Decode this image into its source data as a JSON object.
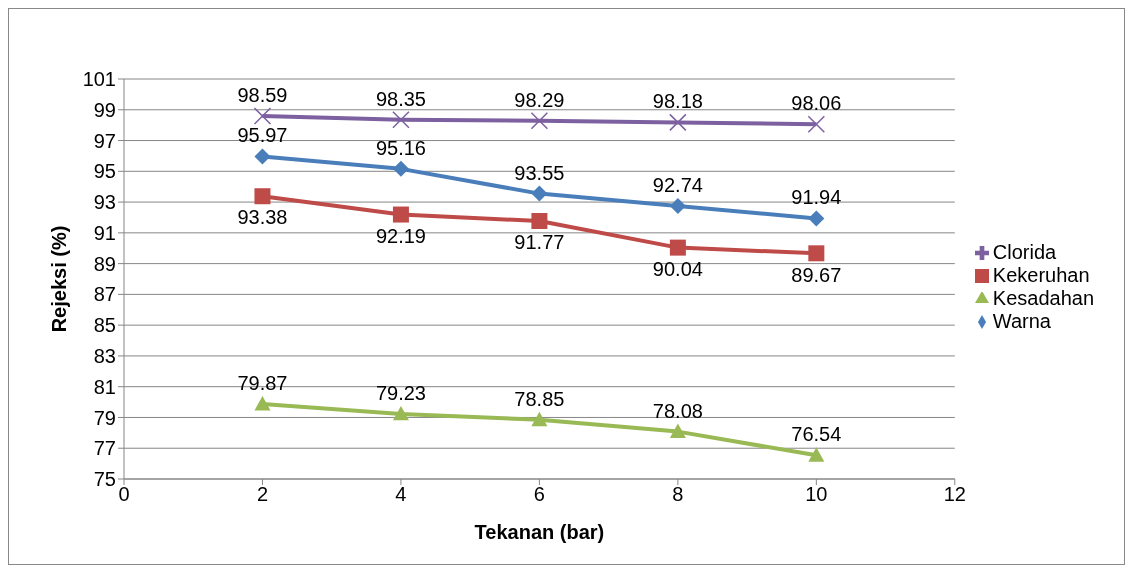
{
  "chart_data": {
    "type": "line",
    "xlabel": "Tekanan (bar)",
    "ylabel": "Rejeksi (%)",
    "x": [
      2,
      4,
      6,
      8,
      10
    ],
    "series": [
      {
        "name": "Warna",
        "color": "#4a7ebb",
        "marker": "diamond",
        "values": [
          95.97,
          95.16,
          93.55,
          92.74,
          91.94
        ]
      },
      {
        "name": "Kekeruhan",
        "color": "#be4b48",
        "marker": "square",
        "values": [
          93.38,
          92.19,
          91.77,
          90.04,
          89.67
        ]
      },
      {
        "name": "Kesadahan",
        "color": "#98b954",
        "marker": "triangle",
        "values": [
          79.87,
          79.23,
          78.85,
          78.08,
          76.54
        ]
      },
      {
        "name": "Clorida",
        "color": "#7d60a0",
        "marker": "cross",
        "values": [
          98.59,
          98.35,
          98.29,
          98.18,
          98.06
        ]
      }
    ],
    "xlim": [
      0,
      12
    ],
    "xticks": [
      0,
      2,
      4,
      6,
      8,
      10,
      12
    ],
    "ylim": [
      75,
      101
    ],
    "yticks": [
      75,
      77,
      79,
      81,
      83,
      85,
      87,
      89,
      91,
      93,
      95,
      97,
      99,
      101
    ],
    "grid": "y",
    "legend": "right",
    "data_labels": true,
    "line_style": "solid"
  }
}
